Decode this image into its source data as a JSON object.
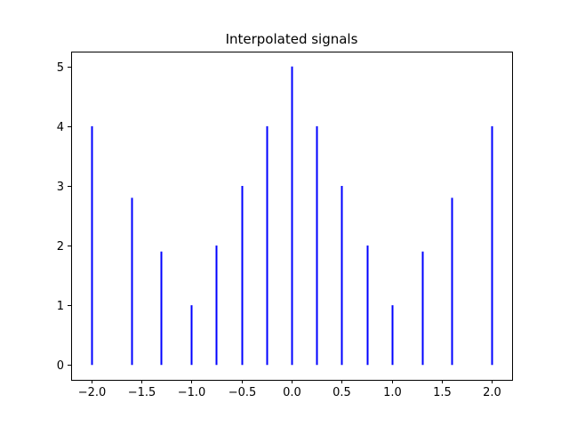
{
  "chart_data": {
    "type": "bar",
    "subtype": "stem-lines",
    "title": "Interpolated signals",
    "xlabel": "",
    "ylabel": "",
    "x": [
      -2.0,
      -1.6,
      -1.3,
      -1.0,
      -0.75,
      -0.5,
      -0.25,
      0.0,
      0.25,
      0.5,
      0.75,
      1.0,
      1.3,
      1.6,
      2.0
    ],
    "values": [
      4.0,
      2.8,
      1.9,
      1.0,
      2.0,
      3.0,
      4.0,
      5.0,
      4.0,
      3.0,
      2.0,
      1.0,
      1.9,
      2.8,
      4.0
    ],
    "xlim": [
      -2.2,
      2.2
    ],
    "ylim": [
      -0.25,
      5.25
    ],
    "xticks": [
      -2.0,
      -1.5,
      -1.0,
      -0.5,
      0.0,
      0.5,
      1.0,
      1.5,
      2.0
    ],
    "xtick_labels": [
      "−2.0",
      "−1.5",
      "−1.0",
      "−0.5",
      "0.0",
      "0.5",
      "1.0",
      "1.5",
      "2.0"
    ],
    "yticks": [
      0,
      1,
      2,
      3,
      4,
      5
    ],
    "ytick_labels": [
      "0",
      "1",
      "2",
      "3",
      "4",
      "5"
    ],
    "grid": false,
    "legend": "none",
    "colors": {
      "stem": "#0000ff",
      "axes": "#000000",
      "background": "#ffffff"
    }
  }
}
